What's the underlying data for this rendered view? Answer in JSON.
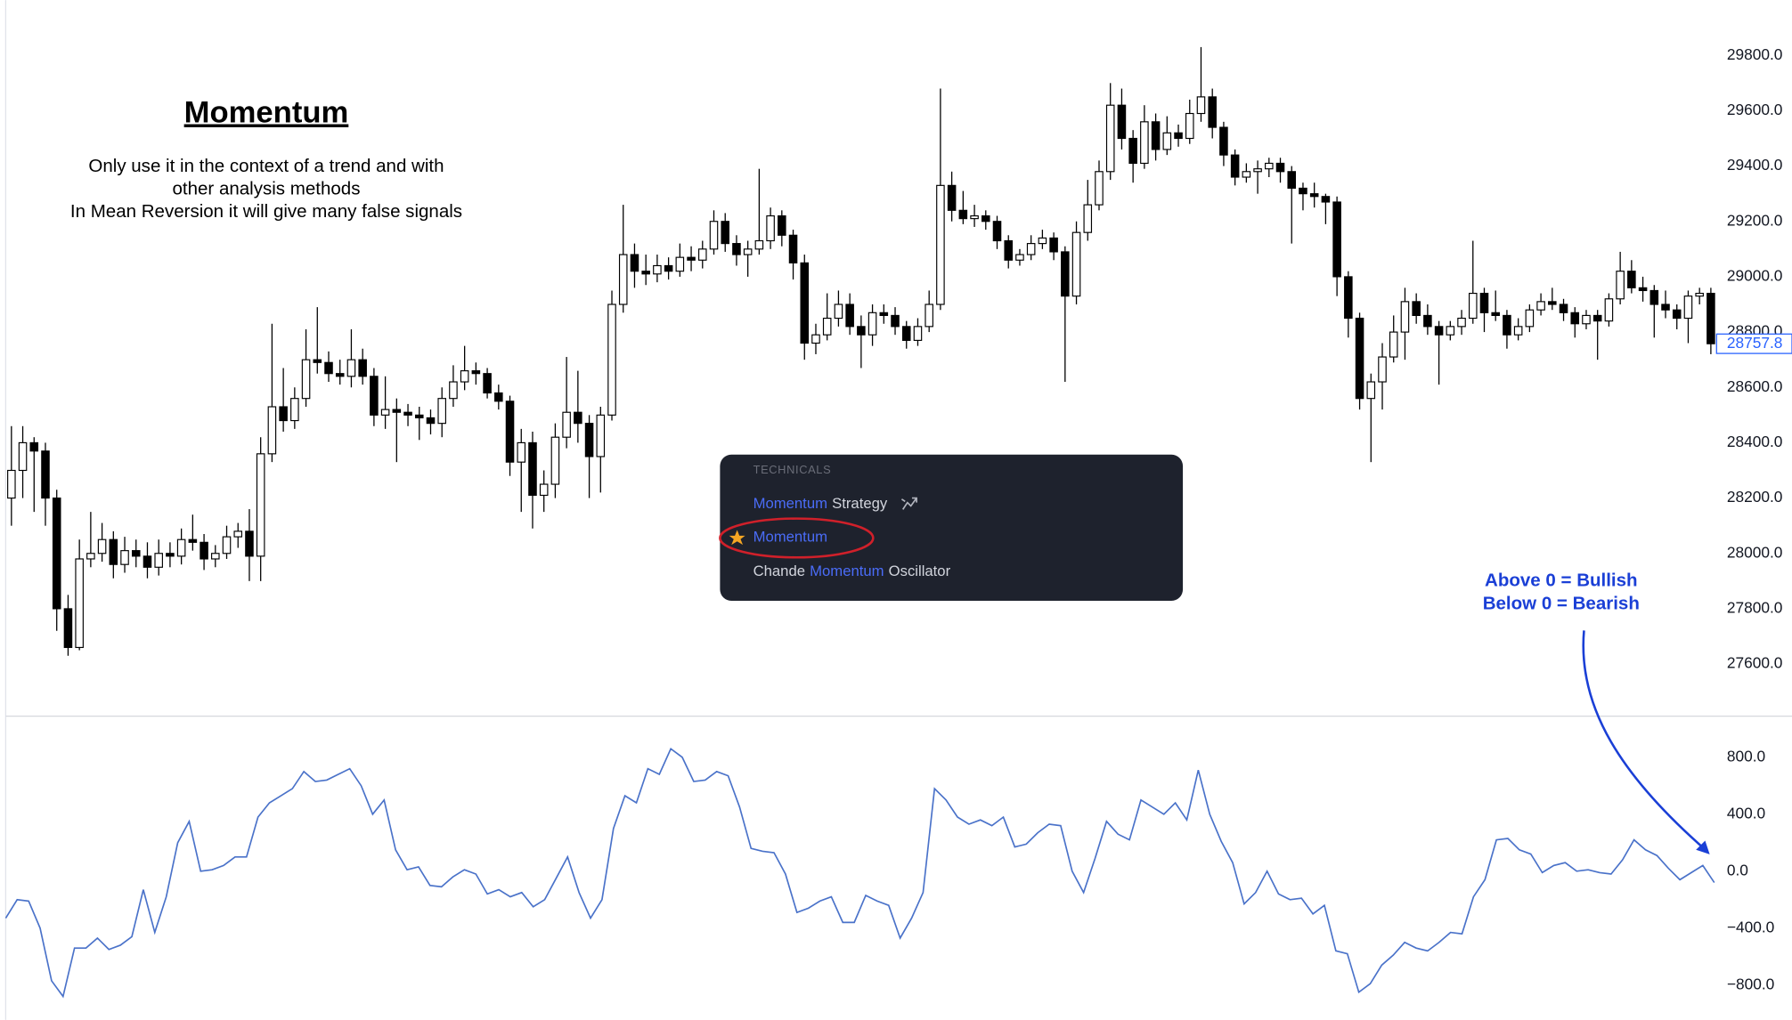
{
  "heading": "Momentum",
  "notes": [
    "Only use it in the context of a trend and with",
    "other analysis methods",
    "In Mean Reversion it will give many false signals"
  ],
  "popup": {
    "header": "TECHNICALS",
    "items": [
      [
        "Momentum",
        "Strategy"
      ],
      [
        "Momentum"
      ],
      [
        "Chande",
        "Momentum",
        "Oscillator"
      ]
    ]
  },
  "annotation": [
    "Above 0 = Bullish",
    "Below 0 = Bearish"
  ],
  "chart_data": [
    {
      "type": "candlestick",
      "color_up": "#ffffff",
      "color_down": "#000000",
      "last_color": "#2962ff",
      "ylim": [
        27420,
        30000
      ],
      "yticks": [
        {
          "value": 27600,
          "label": "27600.0"
        },
        {
          "value": 27800,
          "label": "27800.0"
        },
        {
          "value": 28000,
          "label": "28000.0"
        },
        {
          "value": 28200,
          "label": "28200.0"
        },
        {
          "value": 28400,
          "label": "28400.0"
        },
        {
          "value": 28600,
          "label": "28600.0"
        },
        {
          "value": 28800,
          "label": "28800.0"
        },
        {
          "value": 29000,
          "label": "29000.0"
        },
        {
          "value": 29200,
          "label": "29200.0"
        },
        {
          "value": 29400,
          "label": "29400.0"
        },
        {
          "value": 29600,
          "label": "29600.0"
        },
        {
          "value": 29800,
          "label": "29800.0"
        }
      ],
      "ohlc": [
        [
          28200,
          28460,
          28100,
          28300
        ],
        [
          28300,
          28460,
          28200,
          28400
        ],
        [
          28400,
          28420,
          28150,
          28370
        ],
        [
          28370,
          28400,
          28100,
          28200
        ],
        [
          28200,
          28230,
          27720,
          27800
        ],
        [
          27800,
          27850,
          27630,
          27660
        ],
        [
          27660,
          28050,
          27650,
          27980
        ],
        [
          27980,
          28150,
          27950,
          28000
        ],
        [
          28000,
          28110,
          27970,
          28050
        ],
        [
          28050,
          28080,
          27910,
          27960
        ],
        [
          27960,
          28060,
          27930,
          28010
        ],
        [
          28010,
          28050,
          27950,
          27990
        ],
        [
          27990,
          28040,
          27910,
          27950
        ],
        [
          27950,
          28050,
          27920,
          28000
        ],
        [
          28000,
          28040,
          27950,
          27990
        ],
        [
          27990,
          28090,
          27960,
          28050
        ],
        [
          28050,
          28140,
          28010,
          28040
        ],
        [
          28040,
          28070,
          27940,
          27980
        ],
        [
          27980,
          28030,
          27950,
          28000
        ],
        [
          28000,
          28100,
          27980,
          28060
        ],
        [
          28060,
          28110,
          28020,
          28080
        ],
        [
          28080,
          28160,
          27900,
          27990
        ],
        [
          27990,
          28420,
          27900,
          28360
        ],
        [
          28360,
          28830,
          28330,
          28530
        ],
        [
          28530,
          28670,
          28440,
          28480
        ],
        [
          28480,
          28600,
          28450,
          28560
        ],
        [
          28560,
          28810,
          28530,
          28700
        ],
        [
          28700,
          28890,
          28650,
          28690
        ],
        [
          28690,
          28730,
          28620,
          28650
        ],
        [
          28650,
          28700,
          28610,
          28640
        ],
        [
          28640,
          28810,
          28600,
          28700
        ],
        [
          28700,
          28740,
          28610,
          28640
        ],
        [
          28640,
          28670,
          28460,
          28500
        ],
        [
          28500,
          28640,
          28450,
          28520
        ],
        [
          28520,
          28560,
          28330,
          28510
        ],
        [
          28510,
          28540,
          28460,
          28500
        ],
        [
          28500,
          28530,
          28410,
          28490
        ],
        [
          28490,
          28520,
          28430,
          28470
        ],
        [
          28470,
          28600,
          28420,
          28560
        ],
        [
          28560,
          28680,
          28530,
          28620
        ],
        [
          28620,
          28750,
          28590,
          28660
        ],
        [
          28660,
          28690,
          28610,
          28650
        ],
        [
          28650,
          28670,
          28560,
          28580
        ],
        [
          28580,
          28610,
          28520,
          28550
        ],
        [
          28550,
          28570,
          28280,
          28330
        ],
        [
          28330,
          28450,
          28150,
          28400
        ],
        [
          28400,
          28440,
          28090,
          28210
        ],
        [
          28210,
          28300,
          28150,
          28250
        ],
        [
          28250,
          28470,
          28200,
          28420
        ],
        [
          28420,
          28710,
          28380,
          28510
        ],
        [
          28510,
          28660,
          28400,
          28470
        ],
        [
          28470,
          28500,
          28200,
          28350
        ],
        [
          28350,
          28530,
          28220,
          28500
        ],
        [
          28500,
          28950,
          28480,
          28900
        ],
        [
          28900,
          29260,
          28870,
          29080
        ],
        [
          29080,
          29120,
          28960,
          29020
        ],
        [
          29020,
          29080,
          28970,
          29010
        ],
        [
          29010,
          29080,
          28980,
          29040
        ],
        [
          29040,
          29070,
          28990,
          29020
        ],
        [
          29020,
          29120,
          29000,
          29070
        ],
        [
          29070,
          29110,
          29020,
          29060
        ],
        [
          29060,
          29130,
          29030,
          29100
        ],
        [
          29100,
          29240,
          29080,
          29200
        ],
        [
          29200,
          29230,
          29090,
          29120
        ],
        [
          29120,
          29150,
          29040,
          29080
        ],
        [
          29080,
          29130,
          29000,
          29100
        ],
        [
          29100,
          29390,
          29080,
          29130
        ],
        [
          29130,
          29250,
          29100,
          29220
        ],
        [
          29220,
          29240,
          29110,
          29150
        ],
        [
          29150,
          29170,
          28990,
          29050
        ],
        [
          29050,
          29080,
          28700,
          28760
        ],
        [
          28760,
          28830,
          28720,
          28790
        ],
        [
          28790,
          28940,
          28770,
          28850
        ],
        [
          28850,
          28950,
          28820,
          28900
        ],
        [
          28900,
          28940,
          28790,
          28820
        ],
        [
          28820,
          28860,
          28670,
          28790
        ],
        [
          28790,
          28900,
          28750,
          28870
        ],
        [
          28870,
          28900,
          28830,
          28860
        ],
        [
          28860,
          28890,
          28790,
          28820
        ],
        [
          28820,
          28840,
          28740,
          28770
        ],
        [
          28770,
          28850,
          28750,
          28820
        ],
        [
          28820,
          28950,
          28800,
          28900
        ],
        [
          28900,
          29680,
          28880,
          29330
        ],
        [
          29330,
          29380,
          29200,
          29240
        ],
        [
          29240,
          29310,
          29190,
          29210
        ],
        [
          29210,
          29260,
          29180,
          29220
        ],
        [
          29220,
          29240,
          29170,
          29200
        ],
        [
          29200,
          29220,
          29100,
          29130
        ],
        [
          29130,
          29150,
          29030,
          29060
        ],
        [
          29060,
          29100,
          29040,
          29080
        ],
        [
          29080,
          29150,
          29060,
          29120
        ],
        [
          29120,
          29170,
          29100,
          29140
        ],
        [
          29140,
          29160,
          29060,
          29090
        ],
        [
          29090,
          29110,
          28620,
          28930
        ],
        [
          28930,
          29200,
          28900,
          29160
        ],
        [
          29160,
          29350,
          29130,
          29260
        ],
        [
          29260,
          29420,
          29240,
          29380
        ],
        [
          29380,
          29700,
          29350,
          29620
        ],
        [
          29620,
          29680,
          29460,
          29500
        ],
        [
          29500,
          29530,
          29340,
          29410
        ],
        [
          29410,
          29620,
          29390,
          29560
        ],
        [
          29560,
          29590,
          29420,
          29460
        ],
        [
          29460,
          29580,
          29440,
          29520
        ],
        [
          29520,
          29550,
          29470,
          29500
        ],
        [
          29500,
          29640,
          29480,
          29590
        ],
        [
          29590,
          29830,
          29560,
          29650
        ],
        [
          29650,
          29680,
          29500,
          29540
        ],
        [
          29540,
          29560,
          29400,
          29440
        ],
        [
          29440,
          29460,
          29330,
          29360
        ],
        [
          29360,
          29410,
          29340,
          29380
        ],
        [
          29380,
          29420,
          29300,
          29390
        ],
        [
          29390,
          29430,
          29360,
          29410
        ],
        [
          29410,
          29430,
          29340,
          29380
        ],
        [
          29380,
          29400,
          29120,
          29320
        ],
        [
          29320,
          29340,
          29240,
          29300
        ],
        [
          29300,
          29340,
          29250,
          29290
        ],
        [
          29290,
          29300,
          29190,
          29270
        ],
        [
          29270,
          29290,
          28930,
          29000
        ],
        [
          29000,
          29020,
          28780,
          28850
        ],
        [
          28850,
          28870,
          28520,
          28560
        ],
        [
          28560,
          28650,
          28330,
          28620
        ],
        [
          28620,
          28760,
          28520,
          28710
        ],
        [
          28710,
          28860,
          28690,
          28800
        ],
        [
          28800,
          28960,
          28700,
          28910
        ],
        [
          28910,
          28940,
          28830,
          28860
        ],
        [
          28860,
          28900,
          28790,
          28820
        ],
        [
          28820,
          28840,
          28610,
          28790
        ],
        [
          28790,
          28840,
          28770,
          28820
        ],
        [
          28820,
          28880,
          28790,
          28850
        ],
        [
          28850,
          29130,
          28830,
          28940
        ],
        [
          28940,
          28960,
          28800,
          28870
        ],
        [
          28870,
          28950,
          28840,
          28860
        ],
        [
          28860,
          28880,
          28740,
          28790
        ],
        [
          28790,
          28850,
          28770,
          28820
        ],
        [
          28820,
          28900,
          28800,
          28880
        ],
        [
          28880,
          28940,
          28860,
          28910
        ],
        [
          28910,
          28960,
          28880,
          28900
        ],
        [
          28900,
          28920,
          28840,
          28870
        ],
        [
          28870,
          28890,
          28780,
          28830
        ],
        [
          28830,
          28880,
          28810,
          28860
        ],
        [
          28860,
          28880,
          28700,
          28840
        ],
        [
          28840,
          28940,
          28820,
          28920
        ],
        [
          28920,
          29090,
          28900,
          29020
        ],
        [
          29020,
          29060,
          28940,
          28960
        ],
        [
          28960,
          29000,
          28910,
          28950
        ],
        [
          28950,
          28970,
          28780,
          28900
        ],
        [
          28900,
          28950,
          28850,
          28880
        ],
        [
          28880,
          28900,
          28810,
          28850
        ],
        [
          28850,
          28950,
          28760,
          28930
        ],
        [
          28930,
          28960,
          28900,
          28940
        ],
        [
          28940,
          28960,
          28720,
          28757.8
        ]
      ]
    },
    {
      "type": "line",
      "color": "#4a72c9",
      "ylim": [
        -1045,
        1081
      ],
      "yticks": [
        {
          "value": 800,
          "label": "800.0"
        },
        {
          "value": 400,
          "label": "400.0"
        },
        {
          "value": 0,
          "label": "0.0"
        },
        {
          "value": -400,
          "label": "−400.0"
        },
        {
          "value": -800,
          "label": "−800.0"
        }
      ],
      "values": [
        -330,
        -200,
        -210,
        -400,
        -770,
        -880,
        -540,
        -540,
        -470,
        -550,
        -520,
        -460,
        -130,
        -430,
        -180,
        200,
        350,
        0,
        10,
        40,
        100,
        100,
        380,
        480,
        530,
        580,
        700,
        630,
        640,
        680,
        720,
        600,
        400,
        500,
        150,
        10,
        30,
        -100,
        -110,
        -40,
        10,
        -20,
        -160,
        -130,
        -180,
        -150,
        -250,
        -200,
        -50,
        100,
        -150,
        -330,
        -200,
        300,
        530,
        480,
        720,
        680,
        860,
        800,
        630,
        640,
        700,
        670,
        450,
        160,
        140,
        130,
        -20,
        -290,
        -260,
        -210,
        -180,
        -360,
        -360,
        -170,
        -210,
        -240,
        -470,
        -330,
        -150,
        580,
        500,
        380,
        330,
        360,
        320,
        380,
        170,
        190,
        270,
        330,
        320,
        0,
        -150,
        90,
        350,
        260,
        220,
        500,
        450,
        400,
        480,
        360,
        710,
        400,
        210,
        60,
        -230,
        -150,
        0,
        -160,
        -200,
        -190,
        -300,
        -240,
        -560,
        -580,
        -850,
        -790,
        -660,
        -590,
        -500,
        -540,
        -560,
        -500,
        -430,
        -440,
        -180,
        -60,
        220,
        230,
        150,
        120,
        -10,
        40,
        60,
        0,
        10,
        -10,
        -20,
        80,
        220,
        150,
        110,
        20,
        -60,
        -10,
        40,
        -80
      ]
    }
  ]
}
